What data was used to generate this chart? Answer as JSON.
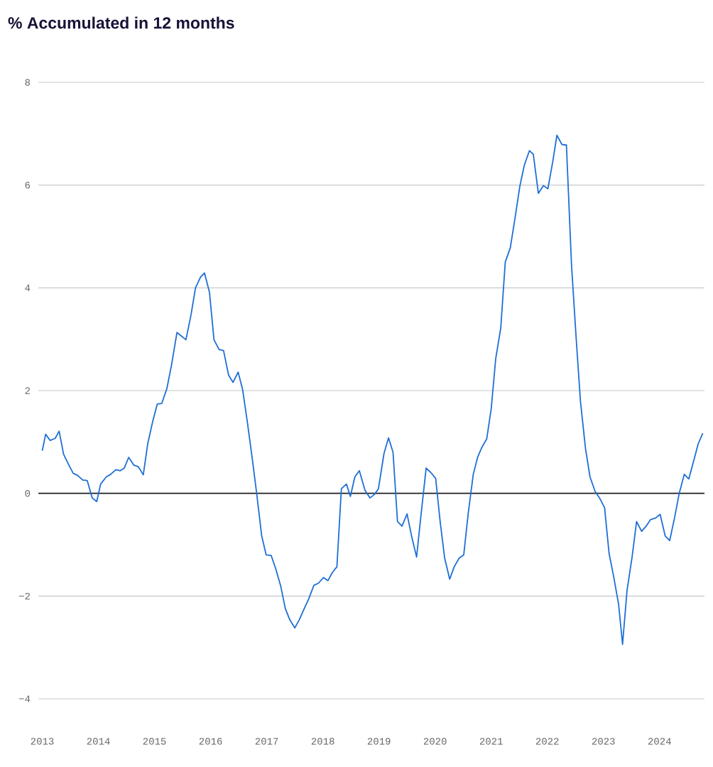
{
  "chart_data": {
    "type": "line",
    "title": "% Accumulated in 12 months",
    "x": [
      2013.0,
      2013.06,
      2013.14,
      2013.23,
      2013.3,
      2013.38,
      2013.46,
      2013.55,
      2013.63,
      2013.72,
      2013.8,
      2013.89,
      2013.97,
      2014.04,
      2014.14,
      2014.22,
      2014.31,
      2014.39,
      2014.46,
      2014.54,
      2014.63,
      2014.71,
      2014.8,
      2014.88,
      2014.97,
      2015.05,
      2015.13,
      2015.22,
      2015.3,
      2015.4,
      2015.48,
      2015.56,
      2015.65,
      2015.73,
      2015.82,
      2015.89,
      2015.98,
      2016.06,
      2016.15,
      2016.23,
      2016.32,
      2016.4,
      2016.49,
      2016.57,
      2016.65,
      2016.74,
      2016.82,
      2016.91,
      2016.99,
      2017.08,
      2017.16,
      2017.25,
      2017.33,
      2017.41,
      2017.5,
      2017.58,
      2017.67,
      2017.75,
      2017.84,
      2017.92,
      2018.01,
      2018.09,
      2018.17,
      2018.25,
      2018.33,
      2018.42,
      2018.49,
      2018.57,
      2018.65,
      2018.75,
      2018.84,
      2018.92,
      2018.99,
      2019.09,
      2019.17,
      2019.25,
      2019.33,
      2019.41,
      2019.5,
      2019.58,
      2019.67,
      2019.75,
      2019.84,
      2019.92,
      2020.01,
      2020.09,
      2020.17,
      2020.26,
      2020.34,
      2020.43,
      2020.51,
      2020.59,
      2020.68,
      2020.76,
      2020.83,
      2020.92,
      2021.0,
      2021.08,
      2021.17,
      2021.25,
      2021.34,
      2021.42,
      2021.51,
      2021.59,
      2021.68,
      2021.75,
      2021.84,
      2021.93,
      2022.01,
      2022.1,
      2022.17,
      2022.26,
      2022.34,
      2022.43,
      2022.51,
      2022.59,
      2022.68,
      2022.76,
      2022.85,
      2022.93,
      2023.02,
      2023.1,
      2023.18,
      2023.27,
      2023.34,
      2023.42,
      2023.51,
      2023.59,
      2023.68,
      2023.76,
      2023.84,
      2023.93,
      2024.01,
      2024.1,
      2024.18,
      2024.27,
      2024.35,
      2024.44,
      2024.52,
      2024.6,
      2024.69,
      2024.77
    ],
    "series": [
      {
        "color": "#1f6fd6",
        "values": [
          0.83,
          1.15,
          1.03,
          1.07,
          1.21,
          0.76,
          0.58,
          0.39,
          0.35,
          0.26,
          0.25,
          -0.09,
          -0.16,
          0.18,
          0.32,
          0.37,
          0.46,
          0.44,
          0.49,
          0.7,
          0.55,
          0.52,
          0.36,
          0.97,
          1.41,
          1.74,
          1.75,
          2.04,
          2.48,
          3.13,
          3.06,
          2.99,
          3.47,
          4.0,
          4.21,
          4.29,
          3.91,
          2.99,
          2.8,
          2.78,
          2.3,
          2.16,
          2.36,
          2.02,
          1.42,
          0.69,
          0.0,
          -0.83,
          -1.2,
          -1.21,
          -1.47,
          -1.81,
          -2.24,
          -2.46,
          -2.62,
          -2.46,
          -2.24,
          -2.05,
          -1.79,
          -1.75,
          -1.64,
          -1.7,
          -1.54,
          -1.43,
          0.09,
          0.18,
          -0.06,
          0.32,
          0.44,
          0.06,
          -0.09,
          -0.02,
          0.09,
          0.78,
          1.08,
          0.8,
          -0.55,
          -0.64,
          -0.4,
          -0.83,
          -1.24,
          -0.41,
          0.49,
          0.41,
          0.29,
          -0.55,
          -1.26,
          -1.67,
          -1.43,
          -1.26,
          -1.2,
          -0.39,
          0.37,
          0.71,
          0.89,
          1.06,
          1.65,
          2.62,
          3.22,
          4.5,
          4.78,
          5.33,
          5.98,
          6.39,
          6.67,
          6.6,
          5.84,
          5.99,
          5.93,
          6.48,
          6.97,
          6.79,
          6.78,
          4.46,
          3.08,
          1.79,
          0.87,
          0.32,
          0.04,
          -0.09,
          -0.28,
          -1.17,
          -1.61,
          -2.16,
          -2.94,
          -1.89,
          -1.24,
          -0.55,
          -0.74,
          -0.64,
          -0.51,
          -0.48,
          -0.41,
          -0.83,
          -0.92,
          -0.46,
          0.0,
          0.37,
          0.28,
          0.6,
          0.97,
          1.17
        ]
      }
    ],
    "xlim": [
      2012.93,
      2024.8
    ],
    "ylim": [
      -4,
      8
    ],
    "xticks": [
      2013,
      2014,
      2015,
      2016,
      2017,
      2018,
      2019,
      2020,
      2021,
      2022,
      2023,
      2024
    ],
    "yticks": [
      {
        "value": -4,
        "label": "−4"
      },
      {
        "value": -2,
        "label": "−2"
      },
      0,
      2,
      4,
      6,
      8
    ],
    "grid": "y",
    "marker": "none",
    "line_style": "solid",
    "ref_lines": [
      {
        "axis": "y",
        "value": 0,
        "color": "#222222"
      }
    ]
  }
}
